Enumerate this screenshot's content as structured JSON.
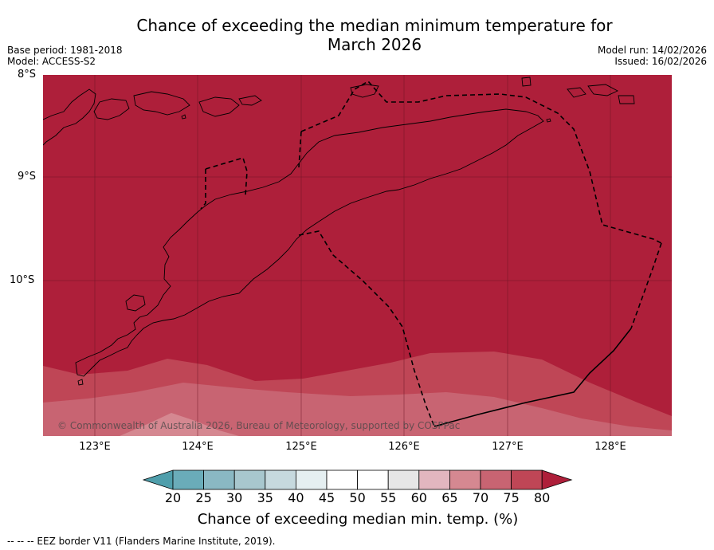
{
  "title": "Chance of exceeding the median minimum temperature for March 2026",
  "title_line1": "Chance of exceeding the median minimum temperature for",
  "title_line2": "March 2026",
  "meta": {
    "base_period": "Base period: 1981-2018",
    "model": "Model: ACCESS-S2",
    "model_run": "Model run: 14/02/2026",
    "issued": "Issued: 16/02/2026"
  },
  "map": {
    "lat_labels": [
      "8°S",
      "9°S",
      "10°S"
    ],
    "lon_labels": [
      "123°E",
      "124°E",
      "125°E",
      "126°E",
      "127°E",
      "128°E"
    ],
    "copyright": "© Commonwealth of Australia 2026, Bureau of Meteorology, supported by COSPPac"
  },
  "colorbar": {
    "title": "Chance of exceeding median min. temp. (%)",
    "ticks": [
      "20",
      "25",
      "30",
      "35",
      "40",
      "45",
      "50",
      "55",
      "60",
      "65",
      "70",
      "75",
      "80"
    ],
    "colors": [
      "#4f9eab",
      "#6aacb9",
      "#8ab8c3",
      "#a8c7ce",
      "#c6d9de",
      "#e5eff1",
      "#ffffff",
      "#ffffff",
      "#e6e6e6",
      "#e2b6bf",
      "#d58891",
      "#c86472",
      "#bf4656",
      "#ae1f3a"
    ]
  },
  "legend": {
    "eez_label": "--  --  -- EEZ border V11 (Flanders Marine Institute, 2019)."
  }
}
